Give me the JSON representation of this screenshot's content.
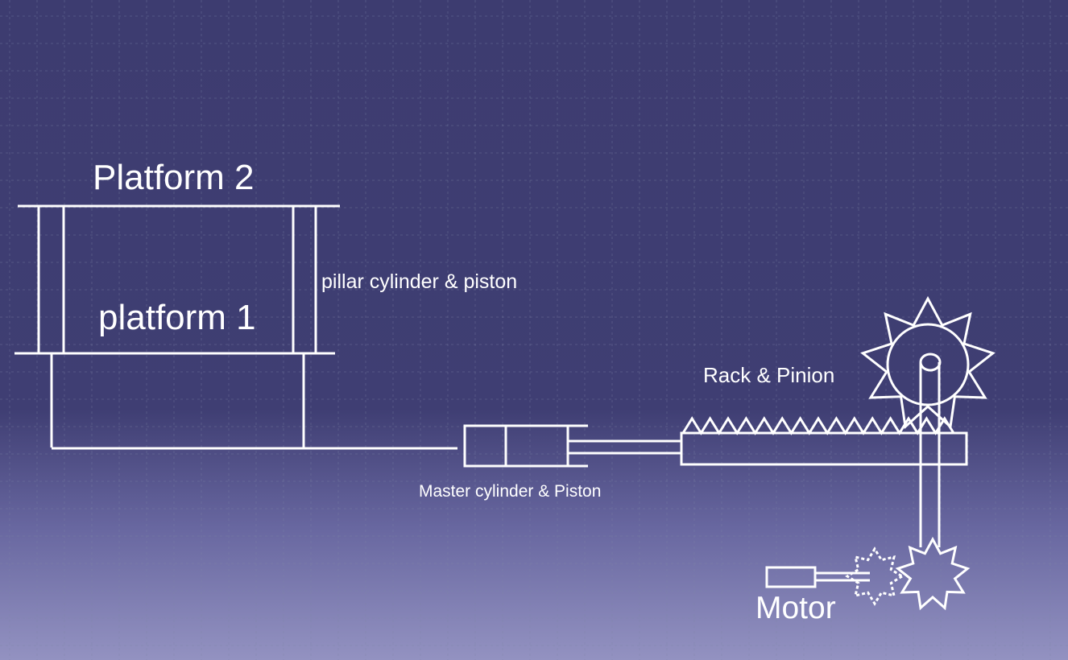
{
  "diagram": {
    "labels": {
      "platform2": "Platform 2",
      "platform1": "platform 1",
      "pillar": "pillar cylinder & piston",
      "rack_pinion": "Rack & Pinion",
      "master": "Master cylinder & Piston",
      "motor": "Motor"
    },
    "colors": {
      "background": "#3d3c70",
      "grid": "#7f86a6",
      "line": "#ffffff"
    }
  }
}
